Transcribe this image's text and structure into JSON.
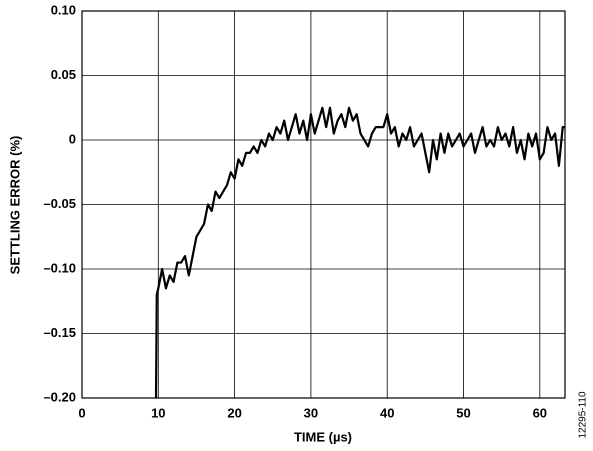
{
  "chart_data": {
    "type": "line",
    "xlabel": "TIME (µs)",
    "ylabel": "SETTLING ERROR (%)",
    "annotation": "12295-110",
    "x": [
      9.7,
      9.8,
      10,
      10.5,
      11,
      11.5,
      12,
      12.5,
      13,
      13.5,
      14,
      14.5,
      15,
      15.5,
      16,
      16.5,
      17,
      17.5,
      18,
      18.5,
      19,
      19.5,
      20,
      20.5,
      21,
      21.5,
      22,
      22.5,
      23,
      23.5,
      24,
      24.5,
      25,
      25.5,
      26,
      26.5,
      27,
      27.5,
      28,
      28.5,
      29,
      29.5,
      30,
      30.5,
      31,
      31.5,
      32,
      32.5,
      33,
      33.5,
      34,
      34.5,
      35,
      35.5,
      36,
      36.5,
      37,
      37.5,
      38,
      38.5,
      39,
      39.5,
      40,
      40.5,
      41,
      41.5,
      42,
      42.5,
      43,
      43.5,
      44,
      44.5,
      45,
      45.5,
      46,
      46.5,
      47,
      47.5,
      48,
      48.5,
      49,
      49.5,
      50,
      50.5,
      51,
      51.5,
      52,
      52.5,
      53,
      53.5,
      54,
      54.5,
      55,
      55.5,
      56,
      56.5,
      57,
      57.5,
      58,
      58.5,
      59,
      59.5,
      60,
      60.5,
      61,
      61.5,
      62,
      62.5,
      63,
      63.3
    ],
    "values": [
      -0.2,
      -0.12,
      -0.115,
      -0.1,
      -0.115,
      -0.105,
      -0.11,
      -0.095,
      -0.095,
      -0.09,
      -0.105,
      -0.09,
      -0.075,
      -0.07,
      -0.065,
      -0.05,
      -0.055,
      -0.04,
      -0.045,
      -0.04,
      -0.035,
      -0.025,
      -0.03,
      -0.015,
      -0.02,
      -0.01,
      -0.01,
      -0.005,
      -0.01,
      0.0,
      -0.005,
      0.005,
      0.0,
      0.01,
      0.005,
      0.015,
      0.0,
      0.01,
      0.02,
      0.005,
      0.015,
      0.0,
      0.02,
      0.005,
      0.015,
      0.025,
      0.01,
      0.025,
      0.005,
      0.015,
      0.02,
      0.01,
      0.025,
      0.015,
      0.02,
      0.005,
      0.0,
      -0.005,
      0.005,
      0.01,
      0.01,
      0.01,
      0.02,
      0.005,
      0.01,
      -0.005,
      0.005,
      0.0,
      0.01,
      -0.005,
      0.0,
      0.005,
      -0.01,
      -0.025,
      0.0,
      -0.015,
      0.005,
      -0.01,
      0.005,
      -0.005,
      0.0,
      0.005,
      -0.005,
      0.0,
      0.005,
      -0.01,
      0.0,
      0.01,
      -0.005,
      0.0,
      -0.005,
      0.01,
      0.0,
      0.005,
      -0.005,
      0.01,
      -0.01,
      0.0,
      -0.015,
      0.005,
      -0.005,
      0.005,
      -0.015,
      -0.01,
      0.01,
      0.0,
      0.005,
      -0.02,
      0.01,
      0.01
    ],
    "color": "#000000",
    "xlim": [
      0,
      63.3
    ],
    "xticks": [
      0,
      10,
      20,
      30,
      40,
      50,
      60
    ],
    "ylim": [
      -0.2,
      0.1
    ],
    "yticks": [
      {
        "value": 0.1,
        "label": "0.10"
      },
      0.05,
      0,
      {
        "value": -0.05,
        "label": "–0.05"
      },
      {
        "value": -0.1,
        "label": "–0.10"
      },
      {
        "value": -0.15,
        "label": "–0.15"
      },
      {
        "value": -0.2,
        "label": "–0.20"
      }
    ],
    "grid": true
  }
}
